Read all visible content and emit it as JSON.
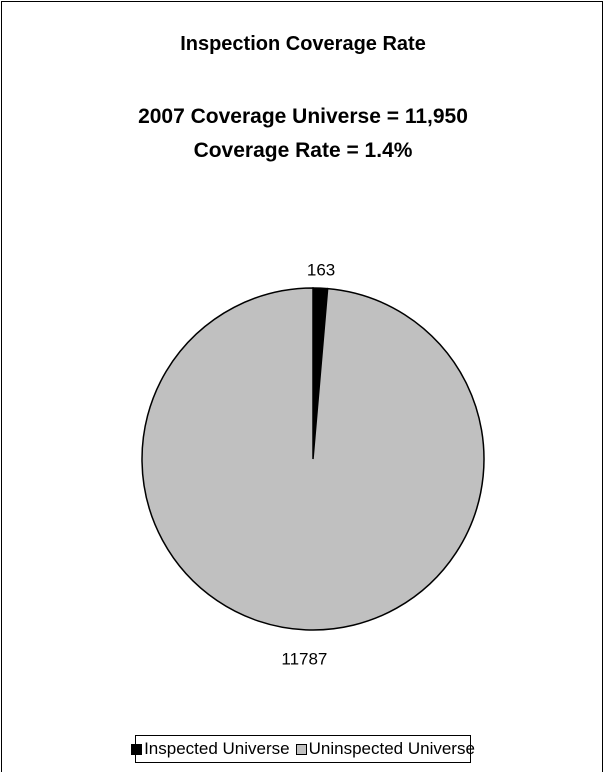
{
  "chart_data": {
    "type": "pie",
    "title": "Inspection Coverage Rate",
    "subtitle_lines": [
      "2007 Coverage Universe = 11,950",
      "Coverage Rate = 1.4%"
    ],
    "categories": [
      "Inspected Universe",
      "Uninspected Universe"
    ],
    "values": [
      163,
      11787
    ],
    "data_labels": [
      "163",
      "11787"
    ],
    "colors": [
      "#000000",
      "#c0c0c0"
    ],
    "legend_placement": "bottom"
  }
}
